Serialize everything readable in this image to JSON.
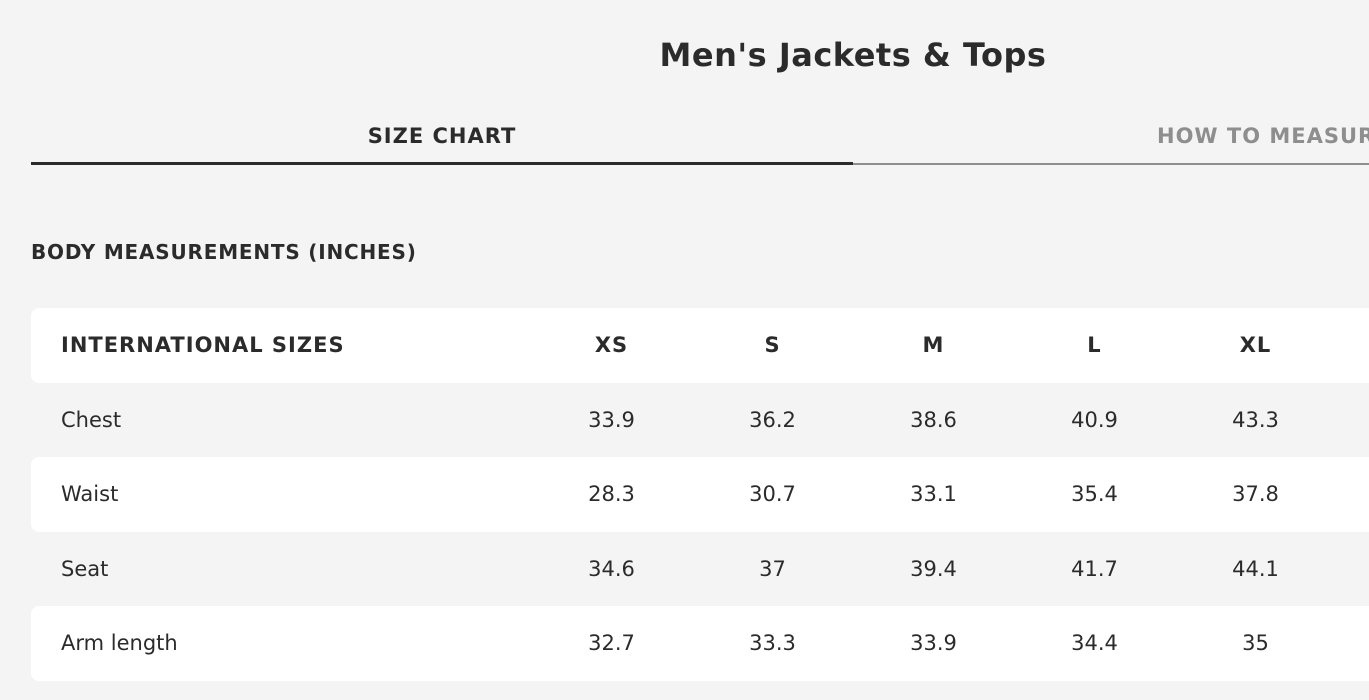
{
  "title": "Men's Jackets & Tops",
  "tabs": [
    {
      "label": "SIZE CHART",
      "active": true
    },
    {
      "label": "HOW TO MEASURE",
      "active": false
    }
  ],
  "section_title": "BODY MEASUREMENTS (INCHES)",
  "table": {
    "header": [
      "INTERNATIONAL SIZES",
      "XS",
      "S",
      "M",
      "L",
      "XL"
    ],
    "rows": [
      [
        "Chest",
        "33.9",
        "36.2",
        "38.6",
        "40.9",
        "43.3"
      ],
      [
        "Waist",
        "28.3",
        "30.7",
        "33.1",
        "35.4",
        "37.8"
      ],
      [
        "Seat",
        "34.6",
        "37",
        "39.4",
        "41.7",
        "44.1"
      ],
      [
        "Arm length",
        "32.7",
        "33.3",
        "33.9",
        "34.4",
        "35"
      ]
    ]
  },
  "colors": {
    "active_tab": "#2b2b2b",
    "inactive_tab": "#8e8e8e",
    "background": "#f4f4f4"
  }
}
